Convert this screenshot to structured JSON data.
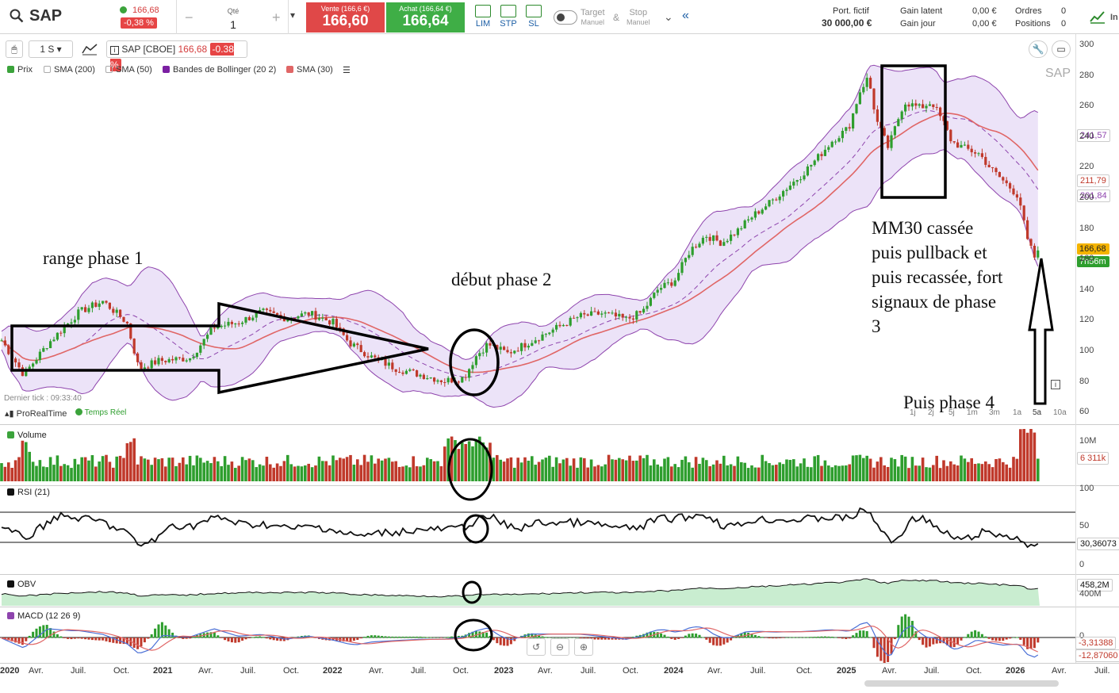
{
  "topbar": {
    "symbol": "SAP",
    "last_price": "166,68",
    "change_pct": "-0,38 %",
    "qty_label": "Qté",
    "qty_value": "1",
    "minus": "−",
    "plus": "+",
    "sell_label": "Vente (166,6 €)",
    "sell_price": "166,60",
    "buy_label": "Achat (166,64 €)",
    "buy_price": "166,64",
    "order_lim": "LIM",
    "order_stp": "STP",
    "order_sl": "SL",
    "target_label": "Target",
    "target_sub": "Manuel",
    "amp": "&",
    "stop_label": "Stop",
    "stop_sub": "Manuel",
    "collapse_icon": "«",
    "port_label": "Port. fictif",
    "port_value": "30 000,00 €",
    "gain_latent_label": "Gain latent",
    "gain_latent_value": "0,00 €",
    "gain_jour_label": "Gain jour",
    "gain_jour_value": "0,00 €",
    "ordres_label": "Ordres",
    "ordres_value": "0",
    "positions_label": "Positions",
    "positions_value": "0",
    "cut_text": "In"
  },
  "chart_toolbar": {
    "timeframe": "1 S",
    "instrument": "SAP [CBOE]",
    "price": "166,68",
    "change": "-0.38 %",
    "watermark": "SAP"
  },
  "legend": [
    {
      "label": "Prix",
      "color": "#3ba33b"
    },
    {
      "label": "SMA (200)",
      "color": "#ffffff"
    },
    {
      "label": "SMA (50)",
      "color": "#ffffff"
    },
    {
      "label": "Bandes de Bollinger (20 2)",
      "color": "#7b1fa2"
    },
    {
      "label": "SMA (30)",
      "color": "#e06666"
    }
  ],
  "price_axis": [
    "300",
    "280",
    "260",
    "240",
    "220",
    "200",
    "180",
    "160",
    "140",
    "120",
    "100",
    "80",
    "60"
  ],
  "price_tags": {
    "bb_upper": "241,57",
    "sma30": "211,79",
    "bb_lower": "201,84",
    "last": "166,68",
    "countdown": "7h56m"
  },
  "footer_info": {
    "last_tick": "Dernier tick : 09:33:40",
    "provider": "ProRealTime",
    "realtime": "Temps Réel"
  },
  "periods": [
    "1j",
    "2j",
    "5j",
    "1m",
    "3m",
    "1a",
    "5a",
    "10a"
  ],
  "panes": {
    "volume": {
      "label": "Volume",
      "axis": "10M",
      "tag": "6 311k"
    },
    "rsi": {
      "label": "RSI (21)",
      "axis_top": "100",
      "axis_mid": "50",
      "axis_bot": "0",
      "tag": "30,36073"
    },
    "obv": {
      "label": "OBV",
      "tag": "458,2M",
      "axis": "400M"
    },
    "macd": {
      "label": "MACD (12 26 9)",
      "axis": "0",
      "tag1": "-3,31388",
      "tag2": "-12,87060"
    }
  },
  "x_axis": [
    "2020",
    "Avr.",
    "Juil.",
    "Oct.",
    "2021",
    "Avr.",
    "Juil.",
    "Oct.",
    "2022",
    "Avr.",
    "Juil.",
    "Oct.",
    "2023",
    "Avr.",
    "Juil.",
    "Oct.",
    "2024",
    "Avr.",
    "Juil.",
    "Oct.",
    "2025",
    "Avr.",
    "Juil.",
    "Oct.",
    "2026",
    "Avr.",
    "Juil."
  ],
  "annotations": {
    "phase1": "range phase 1",
    "phase2": "début phase 2",
    "phase3_l1": "MM30 cassée",
    "phase3_l2": "puis pullback et",
    "phase3_l3": "puis recassée, fort",
    "phase3_l4": "signaux de phase",
    "phase3_l5": "3",
    "phase4": "Puis phase 4"
  },
  "colors": {
    "sell": "#e04848",
    "buy": "#3fae46",
    "bb_fill": "#e9e0f7",
    "bb_line": "#8e44ad",
    "sma30": "#e06666",
    "up": "#2e9e2e",
    "down": "#c0392b"
  }
}
